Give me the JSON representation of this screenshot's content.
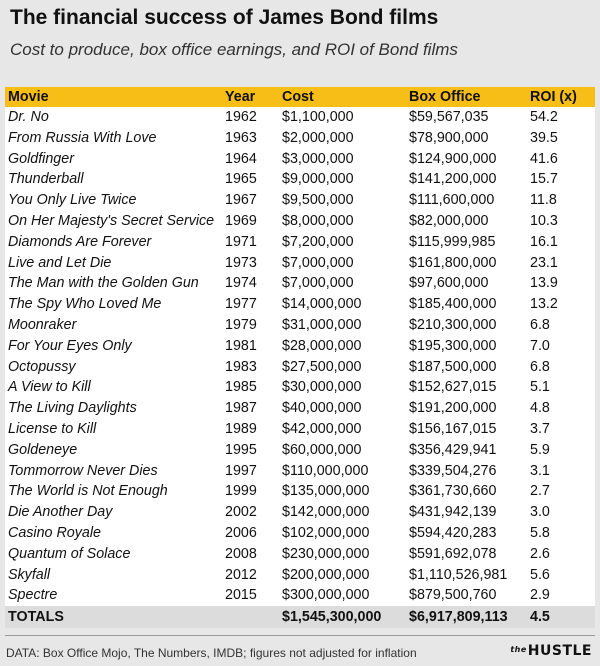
{
  "title": "The financial success of James Bond films",
  "subtitle": "Cost to produce, box office earnings, and ROI of Bond films",
  "columns": [
    "Movie",
    "Year",
    "Cost",
    "Box Office",
    "ROI (x)"
  ],
  "rows": [
    [
      "Dr. No",
      "1962",
      "$1,100,000",
      "$59,567,035",
      "54.2"
    ],
    [
      "From Russia With Love",
      "1963",
      "$2,000,000",
      "$78,900,000",
      "39.5"
    ],
    [
      "Goldfinger",
      "1964",
      "$3,000,000",
      "$124,900,000",
      "41.6"
    ],
    [
      "Thunderball",
      "1965",
      "$9,000,000",
      "$141,200,000",
      "15.7"
    ],
    [
      "You Only Live Twice",
      "1967",
      "$9,500,000",
      "$111,600,000",
      "11.8"
    ],
    [
      "On Her Majesty's Secret Service",
      "1969",
      "$8,000,000",
      "$82,000,000",
      "10.3"
    ],
    [
      "Diamonds Are Forever",
      "1971",
      "$7,200,000",
      "$115,999,985",
      "16.1"
    ],
    [
      "Live and Let Die",
      "1973",
      "$7,000,000",
      "$161,800,000",
      "23.1"
    ],
    [
      "The Man with the Golden Gun",
      "1974",
      "$7,000,000",
      "$97,600,000",
      "13.9"
    ],
    [
      "The Spy Who Loved Me",
      "1977",
      "$14,000,000",
      "$185,400,000",
      "13.2"
    ],
    [
      "Moonraker",
      "1979",
      "$31,000,000",
      "$210,300,000",
      "6.8"
    ],
    [
      "For Your Eyes Only",
      "1981",
      "$28,000,000",
      "$195,300,000",
      "7.0"
    ],
    [
      "Octopussy",
      "1983",
      "$27,500,000",
      "$187,500,000",
      "6.8"
    ],
    [
      "A View to Kill",
      "1985",
      "$30,000,000",
      "$152,627,015",
      "5.1"
    ],
    [
      "The Living Daylights",
      "1987",
      "$40,000,000",
      "$191,200,000",
      "4.8"
    ],
    [
      "License to Kill",
      "1989",
      "$42,000,000",
      "$156,167,015",
      "3.7"
    ],
    [
      "Goldeneye",
      "1995",
      "$60,000,000",
      "$356,429,941",
      "5.9"
    ],
    [
      "Tommorrow Never Dies",
      "1997",
      "$110,000,000",
      "$339,504,276",
      "3.1"
    ],
    [
      "The World is Not Enough",
      "1999",
      "$135,000,000",
      "$361,730,660",
      "2.7"
    ],
    [
      "Die Another Day",
      "2002",
      "$142,000,000",
      "$431,942,139",
      "3.0"
    ],
    [
      "Casino Royale",
      "2006",
      "$102,000,000",
      "$594,420,283",
      "5.8"
    ],
    [
      "Quantum of Solace",
      "2008",
      "$230,000,000",
      "$591,692,078",
      "2.6"
    ],
    [
      "Skyfall",
      "2012",
      "$200,000,000",
      "$1,110,526,981",
      "5.6"
    ],
    [
      "Spectre",
      "2015",
      "$300,000,000",
      "$879,500,760",
      "2.9"
    ]
  ],
  "totals": [
    "TOTALS",
    "",
    "$1,545,300,000",
    "$6,917,809,113",
    "4.5"
  ],
  "source": "DATA: Box Office Mojo, The Numbers, IMDB; figures not adjusted for inflation",
  "logo": {
    "prefix": "the",
    "name": "HUSTLE"
  },
  "colors": {
    "header": "#f7be18",
    "background": "#e7e7e7",
    "panel": "#ffffff",
    "totals": "#dcdcdc"
  },
  "chart_data": {
    "type": "table",
    "title": "The financial success of James Bond films",
    "subtitle": "Cost to produce, box office earnings, and ROI of Bond films",
    "columns": [
      "Movie",
      "Year",
      "Cost",
      "Box Office",
      "ROI (x)"
    ]
  }
}
